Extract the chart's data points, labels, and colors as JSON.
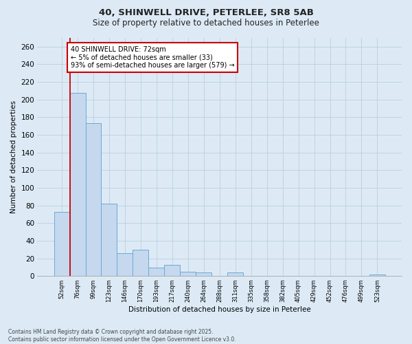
{
  "title_line1": "40, SHINWELL DRIVE, PETERLEE, SR8 5AB",
  "title_line2": "Size of property relative to detached houses in Peterlee",
  "xlabel": "Distribution of detached houses by size in Peterlee",
  "ylabel": "Number of detached properties",
  "footer_line1": "Contains HM Land Registry data © Crown copyright and database right 2025.",
  "footer_line2": "Contains public sector information licensed under the Open Government Licence v3.0.",
  "bin_labels": [
    "52sqm",
    "76sqm",
    "99sqm",
    "123sqm",
    "146sqm",
    "170sqm",
    "193sqm",
    "217sqm",
    "240sqm",
    "264sqm",
    "288sqm",
    "311sqm",
    "335sqm",
    "358sqm",
    "382sqm",
    "405sqm",
    "429sqm",
    "452sqm",
    "476sqm",
    "499sqm",
    "523sqm"
  ],
  "bar_heights": [
    73,
    208,
    173,
    82,
    26,
    30,
    10,
    13,
    5,
    4,
    0,
    4,
    0,
    0,
    0,
    0,
    0,
    0,
    0,
    0,
    2
  ],
  "bar_color": "#c5d8ee",
  "bar_edge_color": "#6aaad4",
  "grid_color": "#b8cfe0",
  "background_color": "#ddeaf6",
  "fig_background_color": "#ddeaf6",
  "annotation_text": "40 SHINWELL DRIVE: 72sqm\n← 5% of detached houses are smaller (33)\n93% of semi-detached houses are larger (579) →",
  "annotation_box_color": "#ffffff",
  "annotation_box_edge": "#cc0000",
  "vline_color": "#cc0000",
  "vline_x": 0.5,
  "ylim": [
    0,
    270
  ],
  "yticks": [
    0,
    20,
    40,
    60,
    80,
    100,
    120,
    140,
    160,
    180,
    200,
    220,
    240,
    260
  ]
}
